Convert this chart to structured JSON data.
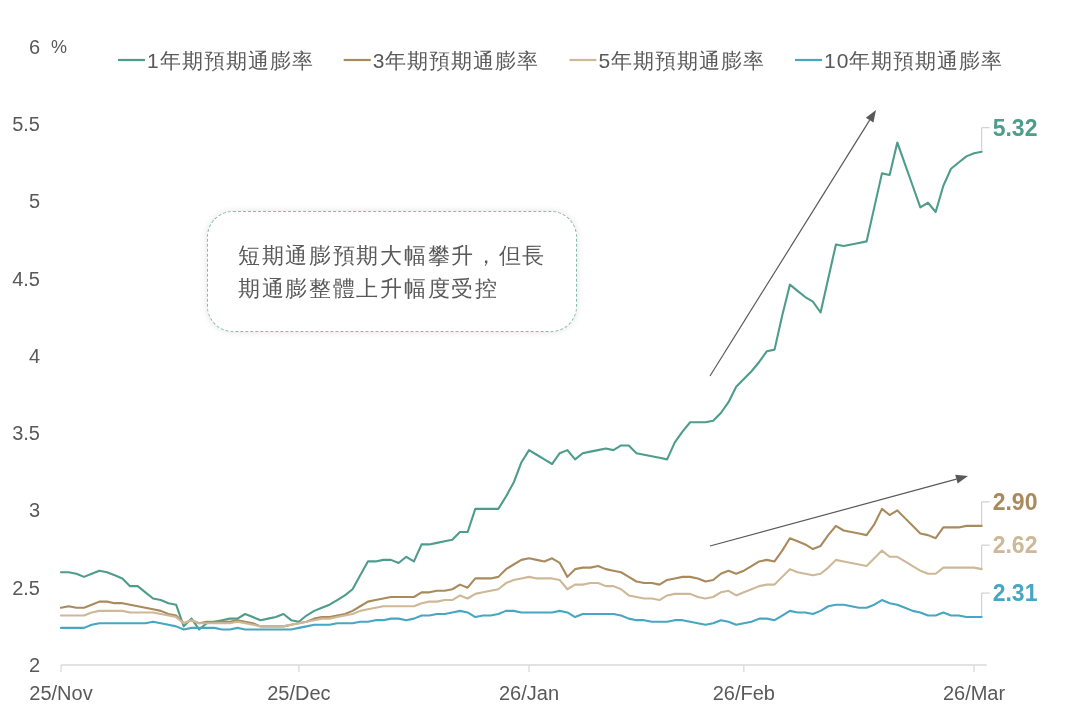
{
  "chart_data": {
    "type": "line",
    "categories": [
      "25/Nov",
      null,
      null,
      null,
      null,
      null,
      null,
      null,
      null,
      null,
      null,
      null,
      null,
      null,
      null,
      null,
      null,
      null,
      null,
      null,
      null,
      null,
      null,
      null,
      null,
      null,
      null,
      null,
      null,
      null,
      null,
      "25/Dec",
      null,
      null,
      null,
      null,
      null,
      null,
      null,
      null,
      null,
      null,
      null,
      null,
      null,
      null,
      null,
      null,
      null,
      null,
      null,
      null,
      null,
      null,
      null,
      null,
      null,
      null,
      null,
      null,
      null,
      "26/Jan",
      null,
      null,
      null,
      null,
      null,
      null,
      null,
      null,
      null,
      null,
      null,
      null,
      null,
      null,
      null,
      null,
      null,
      null,
      null,
      null,
      null,
      null,
      null,
      null,
      null,
      null,
      null,
      "26/Feb",
      null,
      null,
      null,
      null,
      null,
      null,
      null,
      null,
      null,
      null,
      null,
      null,
      null,
      null,
      null,
      null,
      null,
      null,
      null,
      null,
      null,
      null,
      null,
      null,
      null,
      null,
      null,
      null,
      null,
      "26/Mar",
      null
    ],
    "ylim": [
      2,
      6
    ],
    "yticks": [
      2,
      2.5,
      3,
      3.5,
      4,
      4.5,
      5,
      5.5,
      6
    ],
    "ylabel": "%",
    "legend": "top",
    "annotations": [
      "短期通膨預期大幅攀升，但長期通膨整體上升幅度受控"
    ],
    "series": [
      {
        "name": "1年期預期通膨率",
        "color": "#4e9c8c",
        "values": [
          2.6,
          2.6,
          2.59,
          2.57,
          2.59,
          2.61,
          2.6,
          2.58,
          2.56,
          2.51,
          2.51,
          2.47,
          2.43,
          2.42,
          2.4,
          2.39,
          2.25,
          2.3,
          2.23,
          2.27,
          2.28,
          2.29,
          2.3,
          2.3,
          2.33,
          2.31,
          2.29,
          2.3,
          2.31,
          2.33,
          2.29,
          2.28,
          2.32,
          2.35,
          2.37,
          2.39,
          2.42,
          2.45,
          2.49,
          2.58,
          2.67,
          2.67,
          2.68,
          2.68,
          2.66,
          2.7,
          2.67,
          2.78,
          2.78,
          2.79,
          2.8,
          2.81,
          2.86,
          2.86,
          3.01,
          3.01,
          3.01,
          3.01,
          3.09,
          3.18,
          3.31,
          3.39,
          3.36,
          3.33,
          3.3,
          3.37,
          3.39,
          3.33,
          3.37,
          3.38,
          3.39,
          3.4,
          3.39,
          3.42,
          3.42,
          3.37,
          3.36,
          3.35,
          3.34,
          3.33,
          3.44,
          3.51,
          3.57,
          3.57,
          3.57,
          3.58,
          3.63,
          3.7,
          3.8,
          3.85,
          3.9,
          3.96,
          4.03,
          4.04,
          4.26,
          4.46,
          4.42,
          4.38,
          4.35,
          4.28,
          4.5,
          4.72,
          4.71,
          4.72,
          4.73,
          4.74,
          4.96,
          5.18,
          5.17,
          5.38,
          5.24,
          5.1,
          4.96,
          4.99,
          4.93,
          5.1,
          5.21,
          5.25,
          5.29,
          5.31,
          5.32
        ],
        "value_labels": [
          null,
          null,
          null,
          null,
          null,
          null,
          null,
          null,
          null,
          null,
          null,
          null,
          null,
          null,
          null,
          null,
          null,
          null,
          null,
          null,
          null,
          null,
          null,
          null,
          null,
          null,
          null,
          null,
          null,
          null,
          null,
          null,
          null,
          null,
          null,
          null,
          null,
          null,
          null,
          null,
          null,
          null,
          null,
          null,
          null,
          null,
          null,
          null,
          null,
          null,
          null,
          null,
          null,
          null,
          null,
          null,
          null,
          null,
          null,
          null,
          null,
          null,
          null,
          null,
          null,
          null,
          null,
          null,
          null,
          null,
          null,
          null,
          null,
          null,
          null,
          null,
          null,
          null,
          null,
          null,
          null,
          null,
          null,
          null,
          null,
          null,
          null,
          null,
          null,
          null,
          null,
          null,
          null,
          null,
          null,
          null,
          null,
          null,
          null,
          null,
          null,
          null,
          null,
          null,
          null,
          null,
          null,
          null,
          null,
          null,
          null,
          null,
          null,
          null,
          null,
          null,
          null,
          null,
          null,
          null,
          "5.32"
        ]
      },
      {
        "name": "3年期預期通膨率",
        "color": "#a98a5c",
        "values": [
          2.37,
          2.38,
          2.37,
          2.37,
          2.39,
          2.41,
          2.41,
          2.4,
          2.4,
          2.39,
          2.38,
          2.37,
          2.36,
          2.35,
          2.33,
          2.32,
          2.27,
          2.29,
          2.27,
          2.28,
          2.28,
          2.28,
          2.28,
          2.29,
          2.28,
          2.27,
          2.25,
          2.25,
          2.25,
          2.25,
          2.26,
          2.27,
          2.28,
          2.3,
          2.31,
          2.31,
          2.32,
          2.33,
          2.35,
          2.38,
          2.41,
          2.42,
          2.43,
          2.44,
          2.44,
          2.44,
          2.44,
          2.47,
          2.47,
          2.48,
          2.48,
          2.49,
          2.52,
          2.5,
          2.56,
          2.56,
          2.56,
          2.57,
          2.62,
          2.65,
          2.68,
          2.69,
          2.68,
          2.67,
          2.69,
          2.66,
          2.57,
          2.62,
          2.63,
          2.63,
          2.64,
          2.62,
          2.61,
          2.6,
          2.57,
          2.54,
          2.53,
          2.53,
          2.52,
          2.55,
          2.56,
          2.57,
          2.57,
          2.56,
          2.54,
          2.55,
          2.59,
          2.61,
          2.59,
          2.61,
          2.64,
          2.67,
          2.68,
          2.67,
          2.74,
          2.82,
          2.8,
          2.78,
          2.75,
          2.77,
          2.84,
          2.9,
          2.87,
          2.86,
          2.85,
          2.84,
          2.91,
          3.01,
          2.97,
          3.0,
          2.95,
          2.9,
          2.85,
          2.84,
          2.82,
          2.89,
          2.89,
          2.89,
          2.9,
          2.9,
          2.9
        ],
        "value_labels": [
          null,
          null,
          null,
          null,
          null,
          null,
          null,
          null,
          null,
          null,
          null,
          null,
          null,
          null,
          null,
          null,
          null,
          null,
          null,
          null,
          null,
          null,
          null,
          null,
          null,
          null,
          null,
          null,
          null,
          null,
          null,
          null,
          null,
          null,
          null,
          null,
          null,
          null,
          null,
          null,
          null,
          null,
          null,
          null,
          null,
          null,
          null,
          null,
          null,
          null,
          null,
          null,
          null,
          null,
          null,
          null,
          null,
          null,
          null,
          null,
          null,
          null,
          null,
          null,
          null,
          null,
          null,
          null,
          null,
          null,
          null,
          null,
          null,
          null,
          null,
          null,
          null,
          null,
          null,
          null,
          null,
          null,
          null,
          null,
          null,
          null,
          null,
          null,
          null,
          null,
          null,
          null,
          null,
          null,
          null,
          null,
          null,
          null,
          null,
          null,
          null,
          null,
          null,
          null,
          null,
          null,
          null,
          null,
          null,
          null,
          null,
          null,
          null,
          null,
          null,
          null,
          null,
          null,
          null,
          null,
          "2.90"
        ]
      },
      {
        "name": "5年期預期通膨率",
        "color": "#cdb898",
        "values": [
          2.32,
          2.32,
          2.32,
          2.32,
          2.34,
          2.35,
          2.35,
          2.35,
          2.35,
          2.34,
          2.34,
          2.34,
          2.34,
          2.33,
          2.32,
          2.31,
          2.27,
          2.29,
          2.27,
          2.27,
          2.27,
          2.27,
          2.27,
          2.28,
          2.27,
          2.26,
          2.25,
          2.25,
          2.25,
          2.25,
          2.26,
          2.27,
          2.28,
          2.29,
          2.3,
          2.3,
          2.31,
          2.32,
          2.33,
          2.35,
          2.36,
          2.37,
          2.38,
          2.38,
          2.38,
          2.38,
          2.38,
          2.4,
          2.41,
          2.41,
          2.42,
          2.42,
          2.45,
          2.43,
          2.46,
          2.47,
          2.48,
          2.49,
          2.53,
          2.55,
          2.56,
          2.57,
          2.56,
          2.56,
          2.56,
          2.55,
          2.49,
          2.52,
          2.52,
          2.53,
          2.53,
          2.51,
          2.51,
          2.49,
          2.45,
          2.44,
          2.43,
          2.43,
          2.42,
          2.45,
          2.46,
          2.46,
          2.46,
          2.44,
          2.43,
          2.44,
          2.47,
          2.48,
          2.45,
          2.47,
          2.49,
          2.51,
          2.52,
          2.52,
          2.57,
          2.62,
          2.6,
          2.59,
          2.58,
          2.59,
          2.63,
          2.68,
          2.67,
          2.66,
          2.65,
          2.64,
          2.69,
          2.74,
          2.7,
          2.7,
          2.67,
          2.64,
          2.61,
          2.59,
          2.59,
          2.63,
          2.63,
          2.63,
          2.63,
          2.63,
          2.62
        ],
        "value_labels": [
          null,
          null,
          null,
          null,
          null,
          null,
          null,
          null,
          null,
          null,
          null,
          null,
          null,
          null,
          null,
          null,
          null,
          null,
          null,
          null,
          null,
          null,
          null,
          null,
          null,
          null,
          null,
          null,
          null,
          null,
          null,
          null,
          null,
          null,
          null,
          null,
          null,
          null,
          null,
          null,
          null,
          null,
          null,
          null,
          null,
          null,
          null,
          null,
          null,
          null,
          null,
          null,
          null,
          null,
          null,
          null,
          null,
          null,
          null,
          null,
          null,
          null,
          null,
          null,
          null,
          null,
          null,
          null,
          null,
          null,
          null,
          null,
          null,
          null,
          null,
          null,
          null,
          null,
          null,
          null,
          null,
          null,
          null,
          null,
          null,
          null,
          null,
          null,
          null,
          null,
          null,
          null,
          null,
          null,
          null,
          null,
          null,
          null,
          null,
          null,
          null,
          null,
          null,
          null,
          null,
          null,
          null,
          null,
          null,
          null,
          null,
          null,
          null,
          null,
          null,
          null,
          null,
          null,
          null,
          null,
          "2.62"
        ]
      },
      {
        "name": "10年期預期通膨率",
        "color": "#47a6c2",
        "values": [
          2.24,
          2.24,
          2.24,
          2.24,
          2.26,
          2.27,
          2.27,
          2.27,
          2.27,
          2.27,
          2.27,
          2.27,
          2.28,
          2.27,
          2.26,
          2.25,
          2.23,
          2.24,
          2.24,
          2.24,
          2.24,
          2.23,
          2.23,
          2.24,
          2.23,
          2.23,
          2.23,
          2.23,
          2.23,
          2.23,
          2.23,
          2.24,
          2.25,
          2.26,
          2.26,
          2.26,
          2.27,
          2.27,
          2.27,
          2.28,
          2.28,
          2.29,
          2.29,
          2.3,
          2.3,
          2.29,
          2.3,
          2.32,
          2.32,
          2.33,
          2.33,
          2.34,
          2.35,
          2.34,
          2.31,
          2.32,
          2.32,
          2.33,
          2.35,
          2.35,
          2.34,
          2.34,
          2.34,
          2.34,
          2.34,
          2.35,
          2.34,
          2.31,
          2.33,
          2.33,
          2.33,
          2.33,
          2.33,
          2.32,
          2.3,
          2.29,
          2.29,
          2.28,
          2.28,
          2.28,
          2.29,
          2.29,
          2.28,
          2.27,
          2.26,
          2.27,
          2.29,
          2.28,
          2.26,
          2.27,
          2.28,
          2.3,
          2.3,
          2.29,
          2.32,
          2.35,
          2.34,
          2.34,
          2.33,
          2.35,
          2.38,
          2.39,
          2.39,
          2.38,
          2.37,
          2.37,
          2.39,
          2.42,
          2.4,
          2.39,
          2.37,
          2.35,
          2.34,
          2.32,
          2.32,
          2.34,
          2.32,
          2.32,
          2.31,
          2.31,
          2.31
        ],
        "value_labels": [
          null,
          null,
          null,
          null,
          null,
          null,
          null,
          null,
          null,
          null,
          null,
          null,
          null,
          null,
          null,
          null,
          null,
          null,
          null,
          null,
          null,
          null,
          null,
          null,
          null,
          null,
          null,
          null,
          null,
          null,
          null,
          null,
          null,
          null,
          null,
          null,
          null,
          null,
          null,
          null,
          null,
          null,
          null,
          null,
          null,
          null,
          null,
          null,
          null,
          null,
          null,
          null,
          null,
          null,
          null,
          null,
          null,
          null,
          null,
          null,
          null,
          null,
          null,
          null,
          null,
          null,
          null,
          null,
          null,
          null,
          null,
          null,
          null,
          null,
          null,
          null,
          null,
          null,
          null,
          null,
          null,
          null,
          null,
          null,
          null,
          null,
          null,
          null,
          null,
          null,
          null,
          null,
          null,
          null,
          null,
          null,
          null,
          null,
          null,
          null,
          null,
          null,
          null,
          null,
          null,
          null,
          null,
          null,
          null,
          null,
          null,
          null,
          null,
          null,
          null,
          null,
          null,
          null,
          null,
          null,
          "2.31"
        ]
      }
    ]
  }
}
